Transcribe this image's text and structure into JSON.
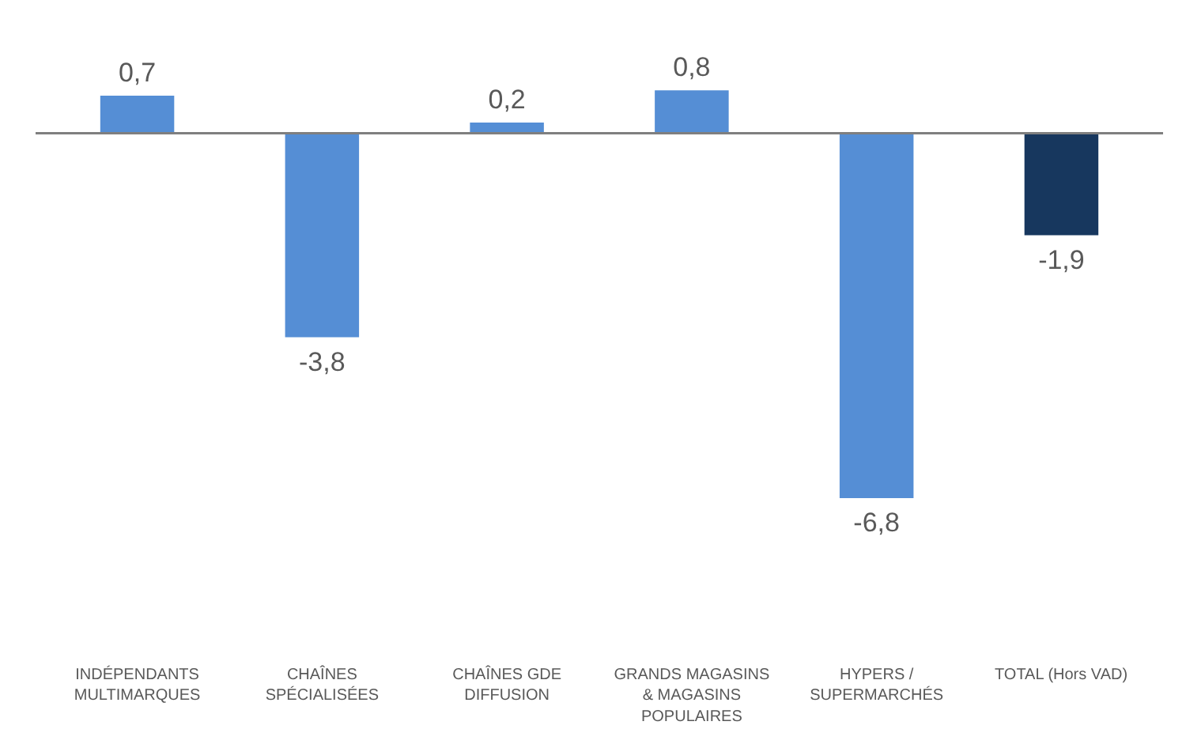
{
  "chart_data": {
    "type": "bar",
    "categories": [
      "INDÉPENDANTS\nMULTIMARQUES",
      "CHAÎNES\nSPÉCIALISÉES",
      "CHAÎNES GDE\nDIFFUSION",
      "GRANDS MAGASINS\n& MAGASINS\nPOPULAIRES",
      "HYPERS /\nSUPERMARCHÉS",
      "TOTAL (Hors VAD)"
    ],
    "values": [
      0.7,
      -3.8,
      0.2,
      0.8,
      -6.8,
      -1.9
    ],
    "colors": [
      "#558ed5",
      "#558ed5",
      "#558ed5",
      "#558ed5",
      "#558ed5",
      "#17375e"
    ],
    "value_labels": [
      "0,7",
      "-3,8",
      "0,2",
      "0,8",
      "-6,8",
      "-1,9"
    ]
  }
}
